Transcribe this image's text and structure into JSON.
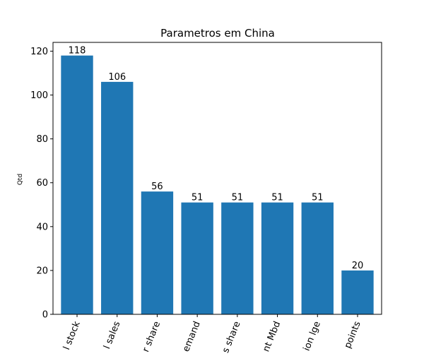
{
  "chart_data": {
    "type": "bar",
    "title": "Parametros em China",
    "xlabel": "",
    "ylabel": "Qtd",
    "ylim": [
      0,
      124
    ],
    "yticks": [
      0,
      20,
      40,
      60,
      80,
      100,
      120
    ],
    "grid": false,
    "bar_color": "#1f77b4",
    "categories": [
      "l stock",
      "l sales",
      "r share",
      "emand",
      "s share",
      "nt Mbd",
      "ion lge",
      "points"
    ],
    "values": [
      118,
      106,
      56,
      51,
      51,
      51,
      51,
      20
    ],
    "data_labels": [
      "118",
      "106",
      "56",
      "51",
      "51",
      "51",
      "51",
      "20"
    ]
  }
}
